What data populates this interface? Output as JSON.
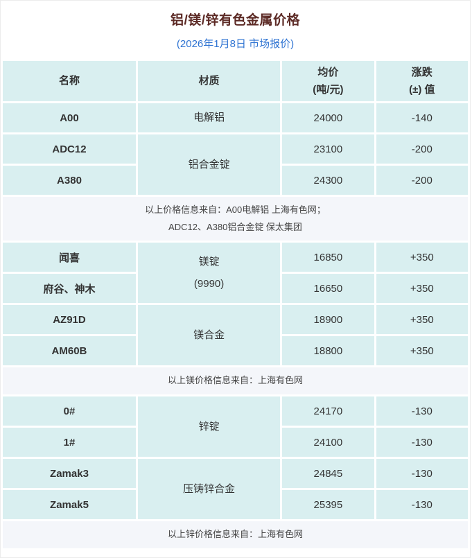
{
  "title": "铝/镁/锌有色金属价格",
  "subtitle": "(2026年1月8日 市场报价)",
  "colors": {
    "title_text": "#5c2a25",
    "subtitle_text": "#2e73d2",
    "cell_background": "#d9eff0",
    "note_background": "#f4f6fa",
    "body_text": "#333333"
  },
  "table": {
    "headers": {
      "name": "名称",
      "material": "材质",
      "price_line1": "均价",
      "price_line2": "(吨/元)",
      "change_line1": "涨跌",
      "change_line2": "(±) 值"
    }
  },
  "sections": [
    {
      "metal": "aluminum",
      "groups": [
        {
          "material": "电解铝",
          "rows": [
            {
              "name": "A00",
              "price": "24000",
              "change": "-140"
            }
          ]
        },
        {
          "material": "铝合金锭",
          "rows": [
            {
              "name": "ADC12",
              "price": "23100",
              "change": "-200"
            },
            {
              "name": "A380",
              "price": "24300",
              "change": "-200"
            }
          ]
        }
      ],
      "note_lines": [
        "以上价格信息来自：A00电解铝 上海有色网；",
        "ADC12、A380铝合金锭 保太集团"
      ]
    },
    {
      "metal": "magnesium",
      "groups": [
        {
          "material": "镁锭",
          "material_sub": "(9990)",
          "rows": [
            {
              "name": "闻喜",
              "price": "16850",
              "change": "+350"
            },
            {
              "name": "府谷、神木",
              "price": "16650",
              "change": "+350"
            }
          ]
        },
        {
          "material": "镁合金",
          "rows": [
            {
              "name": "AZ91D",
              "price": "18900",
              "change": "+350"
            },
            {
              "name": "AM60B",
              "price": "18800",
              "change": "+350"
            }
          ]
        }
      ],
      "note_lines": [
        "以上镁价格信息来自：上海有色网"
      ]
    },
    {
      "metal": "zinc",
      "groups": [
        {
          "material": "锌锭",
          "rows": [
            {
              "name": "0#",
              "price": "24170",
              "change": "-130"
            },
            {
              "name": "1#",
              "price": "24100",
              "change": "-130"
            }
          ]
        },
        {
          "material": "压铸锌合金",
          "rows": [
            {
              "name": "Zamak3",
              "price": "24845",
              "change": "-130"
            },
            {
              "name": "Zamak5",
              "price": "25395",
              "change": "-130"
            }
          ]
        }
      ],
      "note_lines": [
        "以上锌价格信息来自：上海有色网"
      ]
    }
  ],
  "chart_data": {
    "type": "table",
    "title": "铝/镁/锌有色金属价格",
    "subtitle": "(2026年1月8日 市场报价)",
    "columns": [
      "名称",
      "材质",
      "均价(吨/元)",
      "涨跌(±)值"
    ],
    "rows": [
      [
        "A00",
        "电解铝",
        24000,
        -140
      ],
      [
        "ADC12",
        "铝合金锭",
        23100,
        -200
      ],
      [
        "A380",
        "铝合金锭",
        24300,
        -200
      ],
      [
        "闻喜",
        "镁锭(9990)",
        16850,
        350
      ],
      [
        "府谷、神木",
        "镁锭(9990)",
        16650,
        350
      ],
      [
        "AZ91D",
        "镁合金",
        18900,
        350
      ],
      [
        "AM60B",
        "镁合金",
        18800,
        350
      ],
      [
        "0#",
        "锌锭",
        24170,
        -130
      ],
      [
        "1#",
        "锌锭",
        24100,
        -130
      ],
      [
        "Zamak3",
        "压铸锌合金",
        24845,
        -130
      ],
      [
        "Zamak5",
        "压铸锌合金",
        25395,
        -130
      ]
    ],
    "notes": [
      "以上价格信息来自：A00电解铝 上海有色网；ADC12、A380铝合金锭 保太集团",
      "以上镁价格信息来自：上海有色网",
      "以上锌价格信息来自：上海有色网"
    ]
  }
}
